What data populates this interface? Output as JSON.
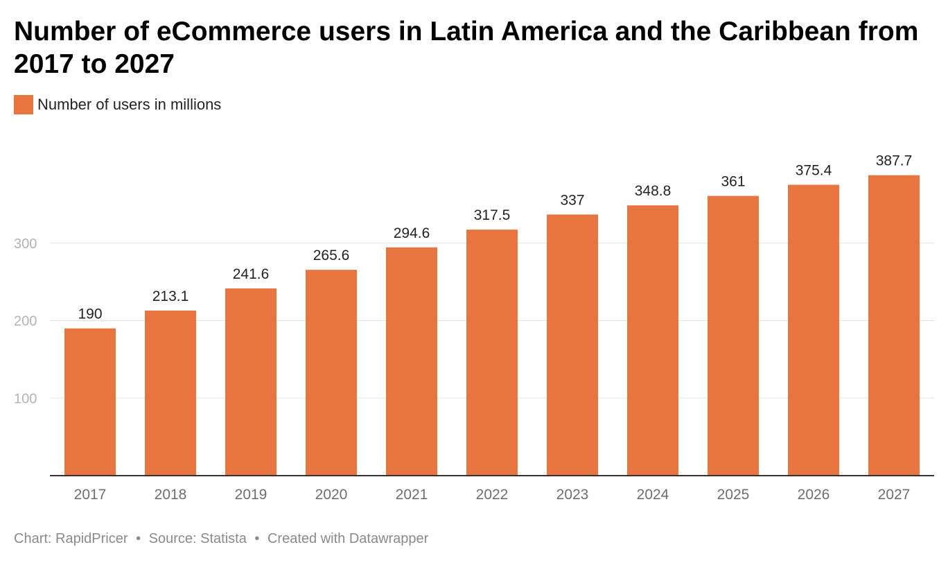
{
  "title": "Number of eCommerce users in Latin America and the Caribbean from 2017 to 2027",
  "legend": {
    "label": "Number of users in millions",
    "color": "#e8743f"
  },
  "footer": {
    "chart_credit": "Chart: RapidPricer",
    "source": "Source: Statista",
    "created_with": "Created with Datawrapper",
    "separator": "•"
  },
  "colors": {
    "bar": "#e8743f",
    "grid": "#e3e3e3",
    "axis": "#333333",
    "tick_label": "#b3b3b3",
    "category_label": "#6e6e6e",
    "value_label": "#222222"
  },
  "chart_data": {
    "type": "bar",
    "categories": [
      "2017",
      "2018",
      "2019",
      "2020",
      "2021",
      "2022",
      "2023",
      "2024",
      "2025",
      "2026",
      "2027"
    ],
    "series": [
      {
        "name": "Number of users in millions",
        "values": [
          190,
          213.1,
          241.6,
          265.6,
          294.6,
          317.5,
          337,
          348.8,
          361,
          375.4,
          387.7
        ]
      }
    ],
    "value_labels": [
      "190",
      "213.1",
      "241.6",
      "265.6",
      "294.6",
      "317.5",
      "337",
      "348.8",
      "361",
      "375.4",
      "387.7"
    ],
    "yticks": [
      100,
      200,
      300
    ],
    "ylim": [
      0,
      400
    ],
    "grid": true,
    "legend_position": "top-left",
    "xlabel": "",
    "ylabel": ""
  }
}
